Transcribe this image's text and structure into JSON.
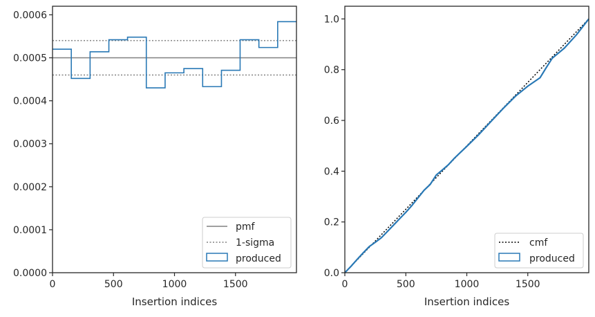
{
  "colors": {
    "produced": "#2878b5",
    "pmf": "#808080",
    "sigma": "#808080",
    "cmf": "#000000",
    "axes": "#262626",
    "legend_border": "#cccccc"
  },
  "chart_data": [
    {
      "type": "step",
      "xlabel": "Insertion indices",
      "ylabel": "",
      "xlim": [
        0,
        2000
      ],
      "ylim": [
        0,
        0.00062
      ],
      "x_ticks": [
        0,
        500,
        1000,
        1500
      ],
      "x_tick_labels": [
        "0",
        "500",
        "1000",
        "1500"
      ],
      "y_ticks": [
        0,
        0.0001,
        0.0002,
        0.0003,
        0.0004,
        0.0005,
        0.0006
      ],
      "y_tick_labels": [
        "0.0000",
        "0.0001",
        "0.0002",
        "0.0003",
        "0.0004",
        "0.0005",
        "0.0006"
      ],
      "pmf": 0.0005,
      "sigma_bounds": [
        0.00046,
        0.00054
      ],
      "bin_edges": [
        0,
        154,
        308,
        462,
        615,
        769,
        923,
        1077,
        1231,
        1385,
        1538,
        1692,
        1846,
        2000
      ],
      "produced": [
        0.00052,
        0.000452,
        0.000514,
        0.000542,
        0.000548,
        0.00043,
        0.000465,
        0.000475,
        0.000433,
        0.000471,
        0.000542,
        0.000524,
        0.000584
      ],
      "legend": {
        "position": "lower right",
        "entries": [
          "pmf",
          "1-sigma",
          "produced"
        ]
      }
    },
    {
      "type": "line",
      "xlabel": "Insertion indices",
      "ylabel": "",
      "xlim": [
        0,
        2000
      ],
      "ylim": [
        0,
        1.05
      ],
      "x_ticks": [
        0,
        500,
        1000,
        1500
      ],
      "x_tick_labels": [
        "0",
        "500",
        "1000",
        "1500"
      ],
      "y_ticks": [
        0,
        0.2,
        0.4,
        0.6,
        0.8,
        1.0
      ],
      "y_tick_labels": [
        "0.0",
        "0.2",
        "0.4",
        "0.6",
        "0.8",
        "1.0"
      ],
      "cmf": {
        "x": [
          0,
          2000
        ],
        "y": [
          0,
          1.0
        ]
      },
      "produced": {
        "x": [
          0,
          50,
          100,
          150,
          200,
          250,
          300,
          350,
          400,
          450,
          500,
          550,
          600,
          650,
          700,
          750,
          800,
          850,
          900,
          950,
          1000,
          1100,
          1200,
          1300,
          1400,
          1500,
          1600,
          1650,
          1700,
          1800,
          1900,
          2000
        ],
        "y": [
          0,
          0.025,
          0.052,
          0.078,
          0.103,
          0.12,
          0.138,
          0.163,
          0.188,
          0.213,
          0.238,
          0.265,
          0.295,
          0.325,
          0.348,
          0.385,
          0.405,
          0.426,
          0.452,
          0.475,
          0.498,
          0.545,
          0.597,
          0.648,
          0.696,
          0.735,
          0.768,
          0.807,
          0.845,
          0.885,
          0.938,
          1.0
        ]
      },
      "legend": {
        "position": "lower right",
        "entries": [
          "cmf",
          "produced"
        ]
      }
    }
  ]
}
